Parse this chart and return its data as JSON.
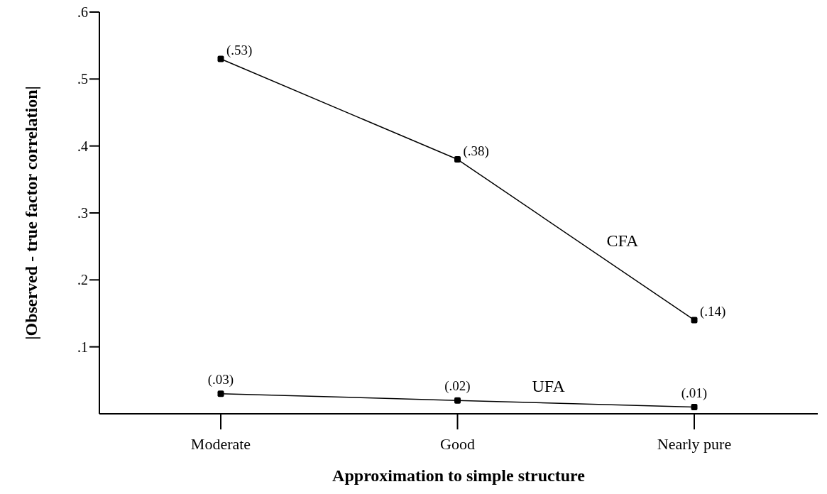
{
  "chart_data": {
    "type": "line",
    "xlabel": "Approximation to simple structure",
    "ylabel": "|Observed - true factor correlation|",
    "categories": [
      "Moderate",
      "Good",
      "Nearly pure"
    ],
    "series": [
      {
        "name": "CFA",
        "color": "#000000",
        "values": [
          0.53,
          0.38,
          0.14
        ],
        "value_labels": [
          "(.53)",
          "(.38)",
          "(.14)"
        ]
      },
      {
        "name": "UFA",
        "color": "#000000",
        "values": [
          0.03,
          0.02,
          0.01
        ],
        "value_labels": [
          "(.03)",
          "(.02)",
          "(.01)"
        ]
      }
    ],
    "ylim": [
      0,
      0.6
    ],
    "yticks": [
      {
        "value": 0.1,
        "label": ".1"
      },
      {
        "value": 0.2,
        "label": ".2"
      },
      {
        "value": 0.3,
        "label": ".3"
      },
      {
        "value": 0.4,
        "label": ".4"
      },
      {
        "value": 0.5,
        "label": ".5"
      },
      {
        "value": 0.6,
        "label": ".6"
      }
    ],
    "grid": false,
    "legend": false,
    "marker": "square",
    "line_style": "solid"
  }
}
